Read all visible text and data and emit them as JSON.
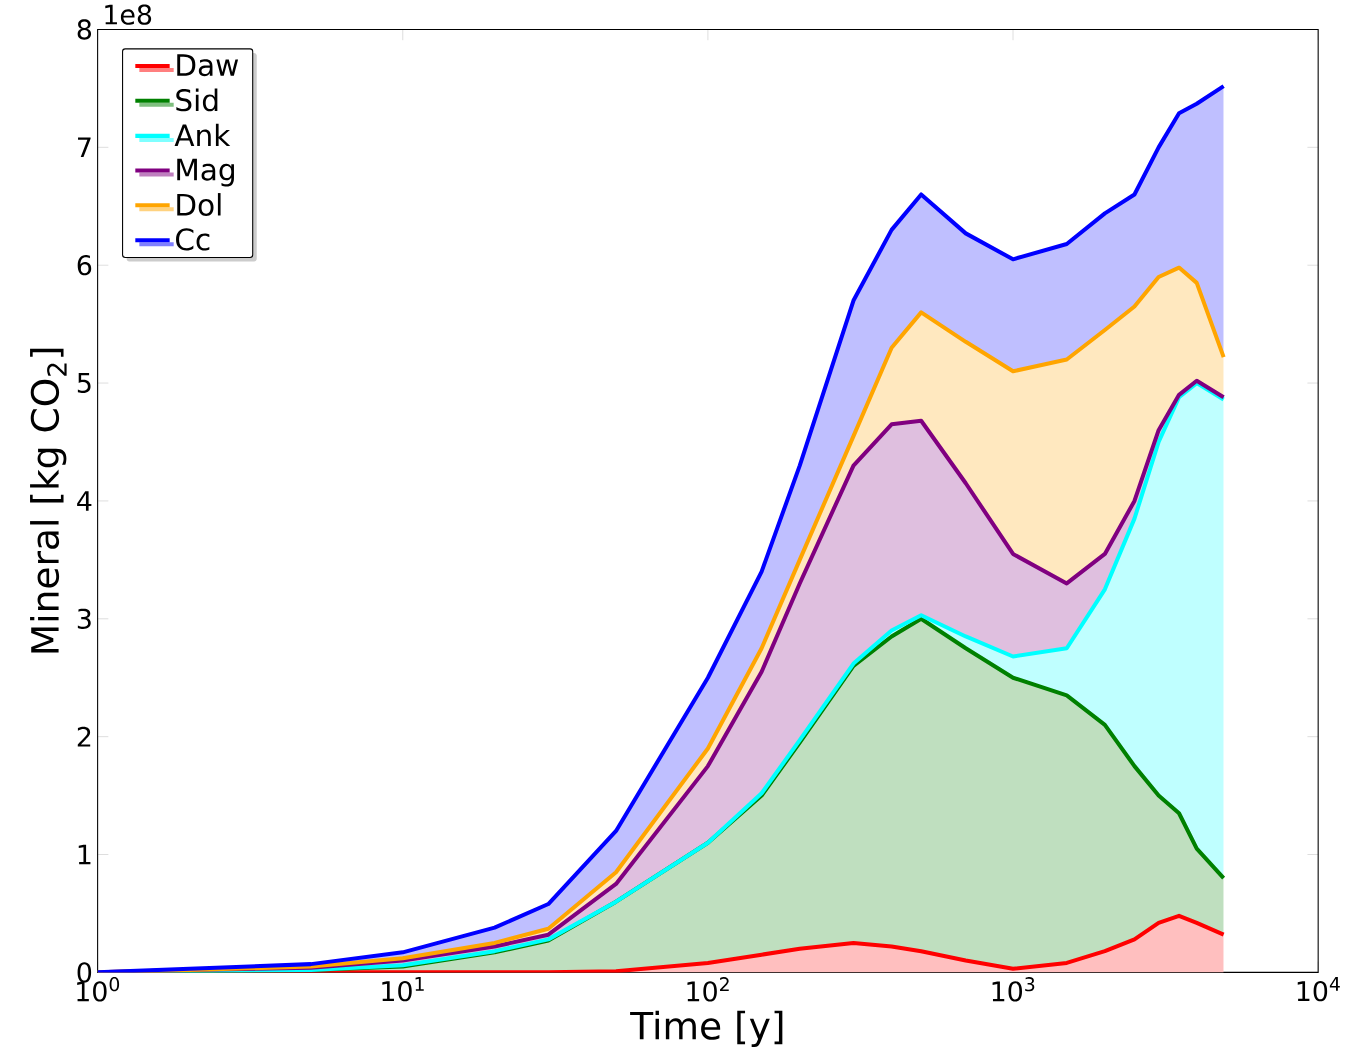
{
  "chart_data": {
    "type": "area",
    "stacked": true,
    "log": "x",
    "xlabel": "Time [y]",
    "ylabel": "Mineral [kg CO$_{2}$]",
    "annotations": [
      "1e8"
    ],
    "x": [
      1,
      2,
      5,
      10,
      20,
      30,
      50,
      100,
      150,
      200,
      300,
      400,
      500,
      700,
      1000,
      1500,
      2000,
      2500,
      3000,
      3500,
      4000,
      4900
    ],
    "xlim": [
      1,
      10000
    ],
    "xticks": [
      {
        "value": 1,
        "label": "10$^{0}$"
      },
      {
        "value": 10,
        "label": "10$^{1}$"
      },
      {
        "value": 100,
        "label": "10$^{2}$"
      },
      {
        "value": 1000,
        "label": "10$^{3}$"
      },
      {
        "value": 10000,
        "label": "10$^{4}$"
      }
    ],
    "ylim": [
      0,
      8
    ],
    "yticks": [
      0,
      1,
      2,
      3,
      4,
      5,
      6,
      7,
      8
    ],
    "grid": false,
    "legend": "top left",
    "series": [
      {
        "name": "Daw",
        "color": "#ff0000",
        "values": [
          0,
          0,
          0,
          0,
          0,
          0,
          0.01,
          0.08,
          0.15,
          0.2,
          0.25,
          0.22,
          0.18,
          0.1,
          0.03,
          0.08,
          0.18,
          0.28,
          0.42,
          0.48,
          0.42,
          0.32
        ]
      },
      {
        "name": "Sid",
        "color": "#008000",
        "values": [
          0,
          0.01,
          0.02,
          0.05,
          0.17,
          0.27,
          0.59,
          1.02,
          1.35,
          1.75,
          2.35,
          2.63,
          2.82,
          2.65,
          2.47,
          2.27,
          1.92,
          1.47,
          1.08,
          0.87,
          0.63,
          0.48
        ]
      },
      {
        "name": "Ank",
        "color": "#00ffff",
        "values": [
          0,
          0,
          0,
          0.01,
          0.01,
          0.01,
          0,
          0,
          0.02,
          0.02,
          0.02,
          0.05,
          0.03,
          0.1,
          0.18,
          0.4,
          1.15,
          2.1,
          3.0,
          3.53,
          3.95,
          4.06
        ]
      },
      {
        "name": "Mag",
        "color": "#800080",
        "values": [
          0,
          0.01,
          0.02,
          0.04,
          0.04,
          0.04,
          0.15,
          0.65,
          1.03,
          1.33,
          1.68,
          1.75,
          1.65,
          1.3,
          0.87,
          0.55,
          0.3,
          0.15,
          0.1,
          0.02,
          0.02,
          0.02
        ]
      },
      {
        "name": "Dol",
        "color": "#ffa500",
        "values": [
          0,
          0,
          0.01,
          0.02,
          0.03,
          0.05,
          0.1,
          0.15,
          0.2,
          0.2,
          0.25,
          0.65,
          0.92,
          1.2,
          1.55,
          1.9,
          1.9,
          1.65,
          1.3,
          1.08,
          0.83,
          0.34
        ]
      },
      {
        "name": "Cc",
        "color": "#0000ff",
        "values": [
          0,
          0.01,
          0.02,
          0.05,
          0.13,
          0.21,
          0.35,
          0.6,
          0.65,
          0.8,
          1.15,
          1.0,
          1.0,
          0.92,
          0.95,
          0.98,
          0.99,
          0.95,
          1.1,
          1.31,
          1.52,
          2.3
        ]
      }
    ]
  }
}
